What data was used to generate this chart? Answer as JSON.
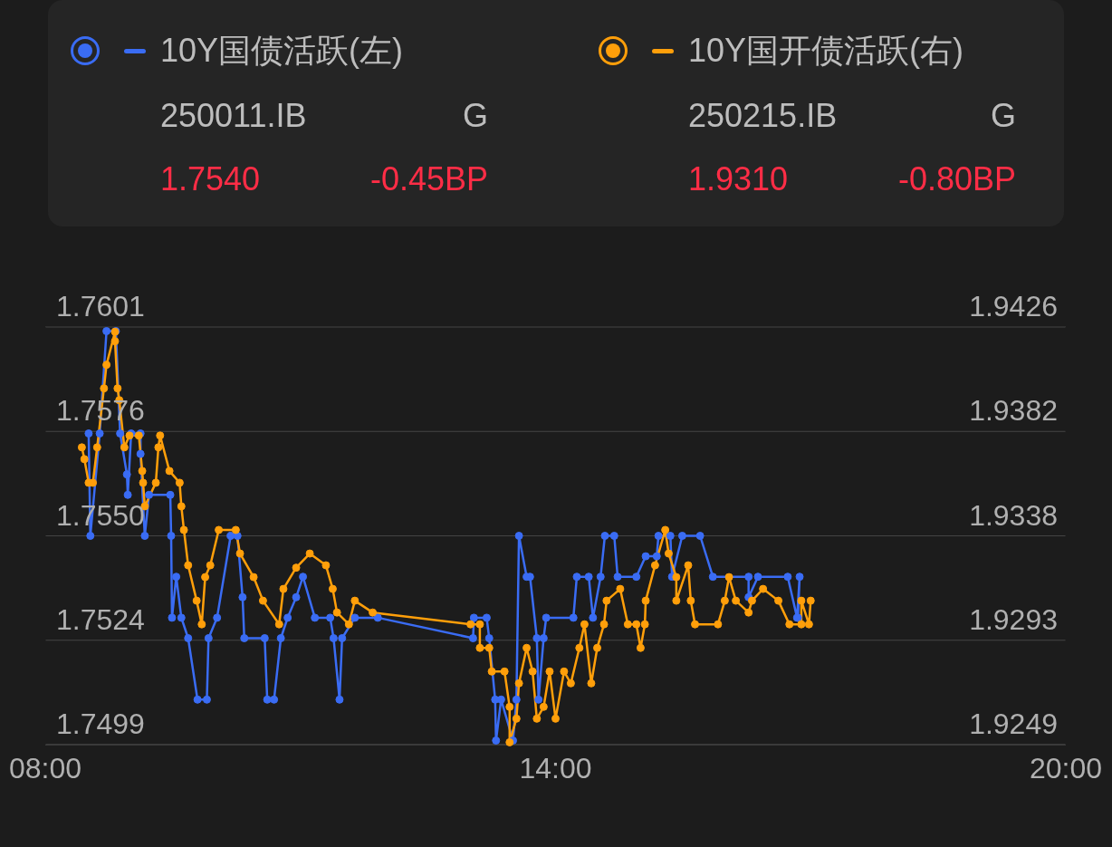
{
  "chart_data": {
    "type": "line",
    "legend": "top",
    "grid": "y",
    "marker": "circle",
    "annotations": [
      "250011.IB",
      "G",
      "1.7540",
      "-0.45BP",
      "250215.IB",
      "G",
      "1.9310",
      "-0.80BP"
    ],
    "xlim": [
      8,
      20
    ],
    "xticks": [
      {
        "value": 8,
        "label": "08:00"
      },
      {
        "value": 14,
        "label": "14:00"
      },
      {
        "value": 20,
        "label": "20:00"
      }
    ],
    "ylim": [
      1.7499,
      1.7601
    ],
    "yticks": [
      1.7499,
      {
        "value": 1.75245,
        "label": "1.7524"
      },
      {
        "value": 1.755,
        "label": "1.7550"
      },
      {
        "value": 1.75755,
        "label": "1.7576"
      },
      1.7601
    ],
    "y2lim": [
      1.9249,
      1.9426
    ],
    "y2ticks": [
      1.9249,
      {
        "value": 1.929325,
        "label": "1.9293"
      },
      {
        "value": 1.93375,
        "label": "1.9338"
      },
      {
        "value": 1.938175,
        "label": "1.9382"
      },
      1.9426
    ],
    "series": [
      {
        "name": "10Y国债活跃(左)",
        "color": "#3a6cf4",
        "x": [
          8.51,
          8.53,
          8.64,
          8.72,
          8.83,
          8.88,
          8.96,
          8.97,
          9.01,
          9.12,
          9.12,
          9.17,
          9.22,
          9.47,
          9.48,
          9.49,
          9.54,
          9.6,
          9.68,
          9.79,
          9.9,
          9.92,
          10.02,
          10.18,
          10.26,
          10.32,
          10.34,
          10.58,
          10.61,
          10.69,
          10.77,
          10.85,
          10.95,
          11.03,
          11.17,
          11.35,
          11.39,
          11.46,
          11.49,
          11.64,
          11.91,
          13.03,
          13.04,
          13.19,
          13.22,
          13.29,
          13.3,
          13.36,
          13.5,
          13.54,
          13.57,
          13.66,
          13.7,
          13.78,
          13.8,
          13.86,
          13.89,
          14.21,
          14.25,
          14.39,
          14.44,
          14.53,
          14.58,
          14.69,
          14.73,
          14.95,
          15.06,
          15.19,
          15.21,
          15.35,
          15.37,
          15.49,
          15.7,
          15.85,
          16.27,
          16.27,
          16.38,
          16.73,
          16.84,
          16.87,
          16.85
        ],
        "values": [
          1.7575,
          1.755,
          1.7575,
          1.76,
          1.76,
          1.7575,
          1.7565,
          1.756,
          1.7575,
          1.7575,
          1.757,
          1.755,
          1.756,
          1.756,
          1.755,
          1.753,
          1.754,
          1.753,
          1.7525,
          1.751,
          1.751,
          1.7525,
          1.753,
          1.755,
          1.755,
          1.7535,
          1.7525,
          1.7525,
          1.751,
          1.751,
          1.7525,
          1.753,
          1.7535,
          1.754,
          1.753,
          1.753,
          1.7525,
          1.751,
          1.7525,
          1.753,
          1.753,
          1.7525,
          1.753,
          1.753,
          1.7525,
          1.751,
          1.75,
          1.751,
          1.75,
          1.751,
          1.755,
          1.754,
          1.754,
          1.7525,
          1.751,
          1.7525,
          1.753,
          1.753,
          1.754,
          1.754,
          1.753,
          1.754,
          1.755,
          1.755,
          1.754,
          1.754,
          1.7545,
          1.7545,
          1.755,
          1.755,
          1.754,
          1.755,
          1.755,
          1.754,
          1.754,
          1.7535,
          1.754,
          1.754,
          1.753,
          1.754,
          1.753
        ]
      },
      {
        "name": "10Y国开债活跃(右)",
        "color": "#ff9f0a",
        "axis": "y2",
        "x": [
          8.43,
          8.46,
          8.51,
          8.56,
          8.61,
          8.69,
          8.72,
          8.82,
          8.82,
          8.85,
          8.87,
          8.93,
          8.99,
          9.1,
          9.14,
          9.15,
          9.17,
          9.3,
          9.33,
          9.35,
          9.46,
          9.58,
          9.6,
          9.63,
          9.68,
          9.78,
          9.84,
          9.88,
          9.94,
          10.04,
          10.24,
          10.29,
          10.45,
          10.56,
          10.75,
          10.8,
          10.95,
          11.11,
          11.3,
          11.38,
          11.43,
          11.57,
          11.64,
          11.85,
          13.0,
          13.11,
          13.11,
          13.22,
          13.25,
          13.4,
          13.46,
          13.46,
          13.54,
          13.57,
          13.66,
          13.73,
          13.78,
          13.86,
          13.93,
          14.0,
          14.1,
          14.18,
          14.28,
          14.34,
          14.42,
          14.49,
          14.57,
          14.6,
          14.76,
          14.85,
          14.95,
          15.0,
          15.05,
          15.06,
          15.17,
          15.29,
          15.33,
          15.42,
          15.42,
          15.56,
          15.59,
          15.64,
          15.91,
          15.99,
          16.04,
          16.12,
          16.27,
          16.31,
          16.44,
          16.62,
          16.75,
          16.89,
          16.89,
          16.98,
          17.0
        ],
        "values": [
          1.9375,
          1.937,
          1.936,
          1.936,
          1.9375,
          1.94,
          1.941,
          1.9424,
          1.942,
          1.94,
          1.9395,
          1.9375,
          1.938,
          1.938,
          1.9365,
          1.936,
          1.935,
          1.936,
          1.9375,
          1.938,
          1.9365,
          1.936,
          1.935,
          1.934,
          1.9325,
          1.931,
          1.93,
          1.932,
          1.9325,
          1.934,
          1.934,
          1.933,
          1.932,
          1.931,
          1.93,
          1.9315,
          1.9324,
          1.933,
          1.9325,
          1.9315,
          1.9305,
          1.93,
          1.931,
          1.9305,
          1.93,
          1.93,
          1.929,
          1.929,
          1.928,
          1.928,
          1.9265,
          1.925,
          1.926,
          1.9275,
          1.929,
          1.928,
          1.926,
          1.9265,
          1.928,
          1.926,
          1.928,
          1.9275,
          1.929,
          1.93,
          1.9275,
          1.929,
          1.93,
          1.931,
          1.9315,
          1.93,
          1.93,
          1.929,
          1.93,
          1.931,
          1.9325,
          1.934,
          1.933,
          1.932,
          1.931,
          1.9325,
          1.931,
          1.93,
          1.93,
          1.931,
          1.932,
          1.931,
          1.9305,
          1.931,
          1.9315,
          1.931,
          1.93,
          1.93,
          1.931,
          1.93,
          1.931
        ]
      }
    ]
  }
}
